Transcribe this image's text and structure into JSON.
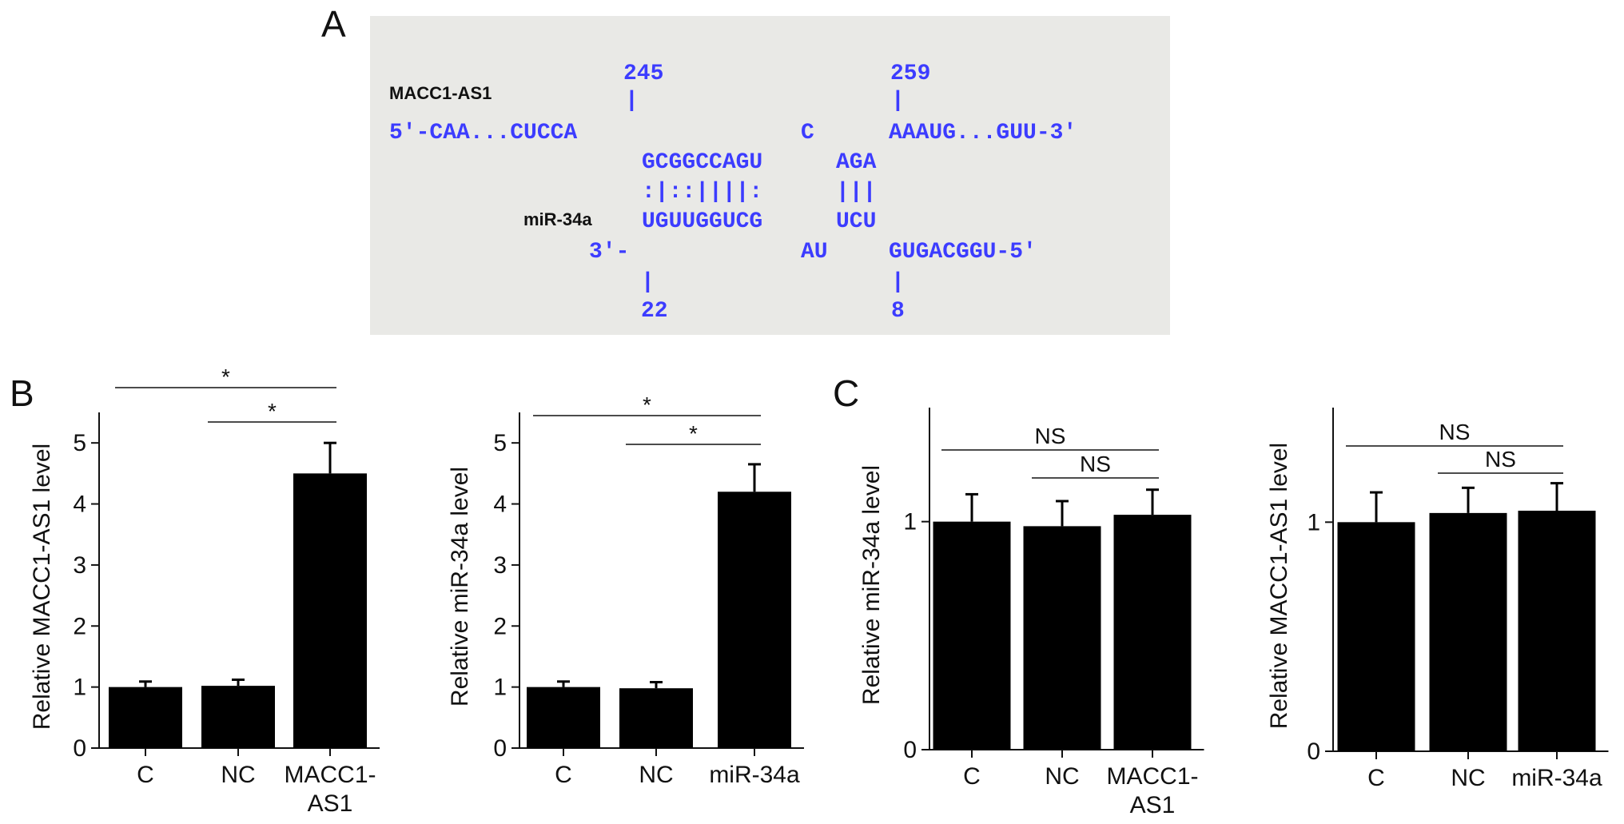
{
  "panel_a": {
    "letter": "A",
    "box_color": "#e9e9e6",
    "seq_color": "#3c3cff",
    "macc_label": "MACC1-AS1",
    "mir_label": "miR-34a",
    "pos_245": "245",
    "pos_259": "259",
    "pos_22": "22",
    "pos_8": "8",
    "tick_char": "|",
    "top_left": "5'-CAA...CUCCA",
    "top_mid": "C",
    "top_right": "AAAUG...GUU-3'",
    "pair_top_1": "GCGGCCAGU",
    "pair_top_2": "AGA",
    "match_1": ":|::||||:",
    "match_2": "|||",
    "pair_bot_1": "UGUUGGUCG",
    "pair_bot_2": "UCU",
    "bot_left": "3'-",
    "bot_mid": "AU",
    "bot_right": "GUGACGGU-5'"
  },
  "panel_letters": {
    "b": "B",
    "c": "C"
  },
  "chart_data": [
    {
      "type": "bar",
      "panel": "B",
      "ylabel": "Relative MACC1-AS1 level",
      "categories": [
        [
          "C"
        ],
        [
          "NC"
        ],
        [
          "MACC1-",
          "AS1"
        ]
      ],
      "values": [
        1.0,
        1.02,
        4.5
      ],
      "errors": [
        0.09,
        0.1,
        0.5
      ],
      "ylim": [
        0,
        5.5
      ],
      "yticks": [
        0,
        1,
        2,
        3,
        4,
        5
      ],
      "significance": [
        {
          "from": 0,
          "to": 2,
          "label": "*"
        },
        {
          "from": 1,
          "to": 2,
          "label": "*"
        }
      ]
    },
    {
      "type": "bar",
      "panel": "B",
      "ylabel": "Relative miR-34a level",
      "categories": [
        [
          "C"
        ],
        [
          "NC"
        ],
        [
          "miR-34a"
        ]
      ],
      "values": [
        1.0,
        0.98,
        4.2
      ],
      "errors": [
        0.09,
        0.1,
        0.45
      ],
      "ylim": [
        0,
        5.5
      ],
      "yticks": [
        0,
        1,
        2,
        3,
        4,
        5
      ],
      "significance": [
        {
          "from": 0,
          "to": 2,
          "label": "*"
        },
        {
          "from": 1,
          "to": 2,
          "label": "*"
        }
      ]
    },
    {
      "type": "bar",
      "panel": "C",
      "ylabel": "Relative miR-34a level",
      "categories": [
        [
          "C"
        ],
        [
          "NC"
        ],
        [
          "MACC1-",
          "AS1"
        ]
      ],
      "values": [
        1.0,
        0.98,
        1.03
      ],
      "errors": [
        0.12,
        0.11,
        0.11
      ],
      "ylim": [
        0,
        1.5
      ],
      "yticks": [
        0,
        1
      ],
      "significance": [
        {
          "from": 0,
          "to": 2,
          "label": "NS"
        },
        {
          "from": 1,
          "to": 2,
          "label": "NS"
        }
      ]
    },
    {
      "type": "bar",
      "panel": "C",
      "ylabel": "Relative MACC1-AS1 level",
      "categories": [
        [
          "C"
        ],
        [
          "NC"
        ],
        [
          "miR-34a"
        ]
      ],
      "values": [
        1.0,
        1.04,
        1.05
      ],
      "errors": [
        0.13,
        0.11,
        0.12
      ],
      "ylim": [
        0,
        1.5
      ],
      "yticks": [
        0,
        1
      ],
      "significance": [
        {
          "from": 0,
          "to": 2,
          "label": "NS"
        },
        {
          "from": 1,
          "to": 2,
          "label": "NS"
        }
      ]
    }
  ]
}
